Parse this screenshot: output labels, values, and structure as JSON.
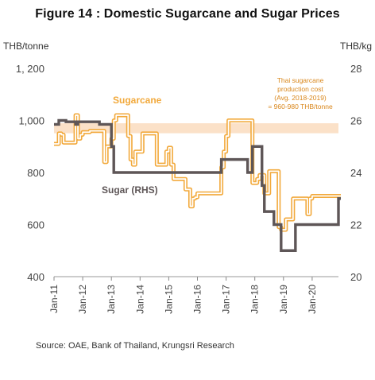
{
  "chart_data": {
    "type": "line",
    "title": "Figure 14 : Domestic Sugarcane and Sugar Prices",
    "left_axis": {
      "unit": "THB/tonne",
      "range": [
        400,
        1200
      ],
      "ticks": [
        {
          "value": 400,
          "label": "400"
        },
        {
          "value": 600,
          "label": "600"
        },
        {
          "value": 800,
          "label": "800"
        },
        {
          "value": 1000,
          "label": "1,000"
        },
        {
          "value": 1200,
          "label": "1, 200"
        }
      ]
    },
    "right_axis": {
      "unit": "THB/kg",
      "range": [
        20,
        28
      ],
      "ticks": [
        {
          "value": 20,
          "label": "20"
        },
        {
          "value": 22,
          "label": "22"
        },
        {
          "value": 24,
          "label": "24"
        },
        {
          "value": 26,
          "label": "26"
        },
        {
          "value": 28,
          "label": "28"
        }
      ]
    },
    "x_axis": {
      "range": [
        "2011-01",
        "2020-12"
      ],
      "tick_labels": [
        "Jan-11",
        "Jan-12",
        "Jan-13",
        "Jan-14",
        "Jan-15",
        "Jan-16",
        "Jan-17",
        "Jan-18",
        "Jan-19",
        "Jan-20"
      ]
    },
    "series": [
      {
        "name": "Sugarcane",
        "axis": "left",
        "color": "#f2a93b",
        "style": "double-line",
        "points": [
          [
            "2011-01",
            910
          ],
          [
            "2011-02",
            910
          ],
          [
            "2011-03",
            950
          ],
          [
            "2011-04",
            945
          ],
          [
            "2011-05",
            915
          ],
          [
            "2011-06",
            915
          ],
          [
            "2011-07",
            915
          ],
          [
            "2011-08",
            915
          ],
          [
            "2011-09",
            915
          ],
          [
            "2011-10",
            1020
          ],
          [
            "2011-11",
            930
          ],
          [
            "2011-12",
            945
          ],
          [
            "2012-01",
            955
          ],
          [
            "2012-02",
            955
          ],
          [
            "2012-03",
            955
          ],
          [
            "2012-04",
            960
          ],
          [
            "2012-05",
            960
          ],
          [
            "2012-06",
            960
          ],
          [
            "2012-07",
            960
          ],
          [
            "2012-08",
            960
          ],
          [
            "2012-09",
            960
          ],
          [
            "2012-10",
            840
          ],
          [
            "2012-11",
            900
          ],
          [
            "2012-12",
            900
          ],
          [
            "2013-01",
            930
          ],
          [
            "2013-02",
            1000
          ],
          [
            "2013-03",
            1020
          ],
          [
            "2013-04",
            1020
          ],
          [
            "2013-05",
            1020
          ],
          [
            "2013-06",
            1020
          ],
          [
            "2013-07",
            1020
          ],
          [
            "2013-08",
            940
          ],
          [
            "2013-09",
            850
          ],
          [
            "2013-10",
            830
          ],
          [
            "2013-11",
            880
          ],
          [
            "2013-12",
            880
          ],
          [
            "2014-01",
            880
          ],
          [
            "2014-02",
            950
          ],
          [
            "2014-03",
            950
          ],
          [
            "2014-04",
            950
          ],
          [
            "2014-05",
            950
          ],
          [
            "2014-06",
            950
          ],
          [
            "2014-07",
            950
          ],
          [
            "2014-08",
            830
          ],
          [
            "2014-09",
            830
          ],
          [
            "2014-10",
            830
          ],
          [
            "2014-11",
            830
          ],
          [
            "2014-12",
            880
          ],
          [
            "2015-01",
            895
          ],
          [
            "2015-02",
            830
          ],
          [
            "2015-03",
            775
          ],
          [
            "2015-04",
            775
          ],
          [
            "2015-05",
            775
          ],
          [
            "2015-06",
            775
          ],
          [
            "2015-07",
            775
          ],
          [
            "2015-08",
            735
          ],
          [
            "2015-09",
            735
          ],
          [
            "2015-10",
            670
          ],
          [
            "2015-11",
            700
          ],
          [
            "2015-12",
            705
          ],
          [
            "2016-01",
            720
          ],
          [
            "2016-02",
            720
          ],
          [
            "2016-03",
            720
          ],
          [
            "2016-04",
            720
          ],
          [
            "2016-05",
            720
          ],
          [
            "2016-06",
            720
          ],
          [
            "2016-07",
            720
          ],
          [
            "2016-08",
            720
          ],
          [
            "2016-09",
            720
          ],
          [
            "2016-10",
            720
          ],
          [
            "2016-11",
            820
          ],
          [
            "2016-12",
            880
          ],
          [
            "2017-01",
            940
          ],
          [
            "2017-02",
            1000
          ],
          [
            "2017-03",
            1000
          ],
          [
            "2017-04",
            1000
          ],
          [
            "2017-05",
            1000
          ],
          [
            "2017-06",
            1000
          ],
          [
            "2017-07",
            1000
          ],
          [
            "2017-08",
            1000
          ],
          [
            "2017-09",
            1000
          ],
          [
            "2017-10",
            1000
          ],
          [
            "2017-11",
            1000
          ],
          [
            "2017-12",
            760
          ],
          [
            "2018-01",
            760
          ],
          [
            "2018-02",
            775
          ],
          [
            "2018-03",
            790
          ],
          [
            "2018-04",
            790
          ],
          [
            "2018-05",
            720
          ],
          [
            "2018-06",
            720
          ],
          [
            "2018-07",
            805
          ],
          [
            "2018-08",
            805
          ],
          [
            "2018-09",
            805
          ],
          [
            "2018-10",
            805
          ],
          [
            "2018-11",
            590
          ],
          [
            "2018-12",
            580
          ],
          [
            "2019-01",
            580
          ],
          [
            "2019-02",
            620
          ],
          [
            "2019-03",
            620
          ],
          [
            "2019-04",
            620
          ],
          [
            "2019-05",
            700
          ],
          [
            "2019-06",
            700
          ],
          [
            "2019-07",
            700
          ],
          [
            "2019-08",
            700
          ],
          [
            "2019-09",
            700
          ],
          [
            "2019-10",
            700
          ],
          [
            "2019-11",
            640
          ],
          [
            "2019-12",
            700
          ],
          [
            "2020-01",
            710
          ],
          [
            "2020-02",
            710
          ],
          [
            "2020-03",
            710
          ],
          [
            "2020-04",
            710
          ],
          [
            "2020-05",
            710
          ],
          [
            "2020-06",
            710
          ],
          [
            "2020-07",
            710
          ],
          [
            "2020-08",
            710
          ],
          [
            "2020-09",
            710
          ],
          [
            "2020-10",
            710
          ],
          [
            "2020-11",
            710
          ],
          [
            "2020-12",
            710
          ]
        ]
      },
      {
        "name": "Sugar (RHS)",
        "axis": "right",
        "color": "#5e5657",
        "style": "solid",
        "points": [
          [
            "2011-01",
            25.85
          ],
          [
            "2011-02",
            25.85
          ],
          [
            "2011-03",
            26.0
          ],
          [
            "2011-04",
            26.0
          ],
          [
            "2011-05",
            26.0
          ],
          [
            "2011-06",
            25.95
          ],
          [
            "2011-07",
            25.95
          ],
          [
            "2011-08",
            25.95
          ],
          [
            "2011-09",
            25.95
          ],
          [
            "2011-10",
            25.85
          ],
          [
            "2011-11",
            25.95
          ],
          [
            "2011-12",
            25.95
          ],
          [
            "2012-01",
            25.95
          ],
          [
            "2012-02",
            25.95
          ],
          [
            "2012-03",
            25.95
          ],
          [
            "2012-04",
            25.95
          ],
          [
            "2012-05",
            25.95
          ],
          [
            "2012-06",
            25.95
          ],
          [
            "2012-07",
            25.95
          ],
          [
            "2012-08",
            25.85
          ],
          [
            "2012-09",
            25.85
          ],
          [
            "2012-10",
            25.85
          ],
          [
            "2012-11",
            25.85
          ],
          [
            "2012-12",
            25.85
          ],
          [
            "2013-01",
            25.0
          ],
          [
            "2013-02",
            24.0
          ],
          [
            "2013-03",
            24.0
          ],
          [
            "2013-04",
            24.0
          ],
          [
            "2013-05",
            24.0
          ],
          [
            "2013-06",
            24.0
          ],
          [
            "2013-07",
            24.0
          ],
          [
            "2013-08",
            24.0
          ],
          [
            "2013-09",
            24.0
          ],
          [
            "2013-10",
            24.0
          ],
          [
            "2013-11",
            24.0
          ],
          [
            "2013-12",
            24.0
          ],
          [
            "2014-01",
            24.0
          ],
          [
            "2014-02",
            24.0
          ],
          [
            "2014-03",
            24.0
          ],
          [
            "2014-04",
            24.0
          ],
          [
            "2014-05",
            24.0
          ],
          [
            "2014-06",
            24.0
          ],
          [
            "2014-07",
            24.0
          ],
          [
            "2014-08",
            24.0
          ],
          [
            "2014-09",
            24.0
          ],
          [
            "2014-10",
            24.0
          ],
          [
            "2014-11",
            24.0
          ],
          [
            "2014-12",
            24.0
          ],
          [
            "2015-01",
            24.0
          ],
          [
            "2015-02",
            24.0
          ],
          [
            "2015-03",
            24.0
          ],
          [
            "2015-04",
            24.0
          ],
          [
            "2015-05",
            24.0
          ],
          [
            "2015-06",
            24.0
          ],
          [
            "2015-07",
            24.0
          ],
          [
            "2015-08",
            24.0
          ],
          [
            "2015-09",
            24.0
          ],
          [
            "2015-10",
            24.0
          ],
          [
            "2015-11",
            24.0
          ],
          [
            "2015-12",
            24.0
          ],
          [
            "2016-01",
            24.0
          ],
          [
            "2016-02",
            24.0
          ],
          [
            "2016-03",
            24.0
          ],
          [
            "2016-04",
            24.0
          ],
          [
            "2016-05",
            24.0
          ],
          [
            "2016-06",
            24.0
          ],
          [
            "2016-07",
            24.0
          ],
          [
            "2016-08",
            24.0
          ],
          [
            "2016-09",
            24.0
          ],
          [
            "2016-10",
            24.0
          ],
          [
            "2016-11",
            24.5
          ],
          [
            "2016-12",
            24.5
          ],
          [
            "2017-01",
            24.5
          ],
          [
            "2017-02",
            24.5
          ],
          [
            "2017-03",
            24.5
          ],
          [
            "2017-04",
            24.5
          ],
          [
            "2017-05",
            24.5
          ],
          [
            "2017-06",
            24.5
          ],
          [
            "2017-07",
            24.5
          ],
          [
            "2017-08",
            24.5
          ],
          [
            "2017-09",
            24.5
          ],
          [
            "2017-10",
            24.0
          ],
          [
            "2017-11",
            24.0
          ],
          [
            "2017-12",
            25.0
          ],
          [
            "2018-01",
            25.0
          ],
          [
            "2018-02",
            25.0
          ],
          [
            "2018-03",
            25.0
          ],
          [
            "2018-04",
            23.5
          ],
          [
            "2018-05",
            22.5
          ],
          [
            "2018-06",
            22.5
          ],
          [
            "2018-07",
            22.5
          ],
          [
            "2018-08",
            22.5
          ],
          [
            "2018-09",
            22.0
          ],
          [
            "2018-10",
            22.0
          ],
          [
            "2018-11",
            22.0
          ],
          [
            "2018-12",
            21.0
          ],
          [
            "2019-01",
            21.0
          ],
          [
            "2019-02",
            21.0
          ],
          [
            "2019-03",
            21.0
          ],
          [
            "2019-04",
            21.0
          ],
          [
            "2019-05",
            21.0
          ],
          [
            "2019-06",
            22.0
          ],
          [
            "2019-07",
            22.0
          ],
          [
            "2019-08",
            22.0
          ],
          [
            "2019-09",
            22.0
          ],
          [
            "2019-10",
            22.0
          ],
          [
            "2019-11",
            22.0
          ],
          [
            "2019-12",
            22.0
          ],
          [
            "2020-01",
            22.0
          ],
          [
            "2020-02",
            22.0
          ],
          [
            "2020-03",
            22.0
          ],
          [
            "2020-04",
            22.0
          ],
          [
            "2020-05",
            22.0
          ],
          [
            "2020-06",
            22.0
          ],
          [
            "2020-07",
            22.0
          ],
          [
            "2020-08",
            22.0
          ],
          [
            "2020-09",
            22.0
          ],
          [
            "2020-10",
            22.0
          ],
          [
            "2020-11",
            22.0
          ],
          [
            "2020-12",
            23.0
          ]
        ]
      }
    ],
    "reference_band": {
      "axis": "left",
      "range": [
        960,
        980
      ],
      "color": "#fbe1c8",
      "annotation": [
        "Thai sugarcane",
        "production  cost",
        "(Avg. 2018-2019)",
        "= 960-980 THB/tonne"
      ]
    },
    "legend": "inline labels"
  },
  "source": "Source: OAE, Bank of Thailand, Krungsri Research"
}
